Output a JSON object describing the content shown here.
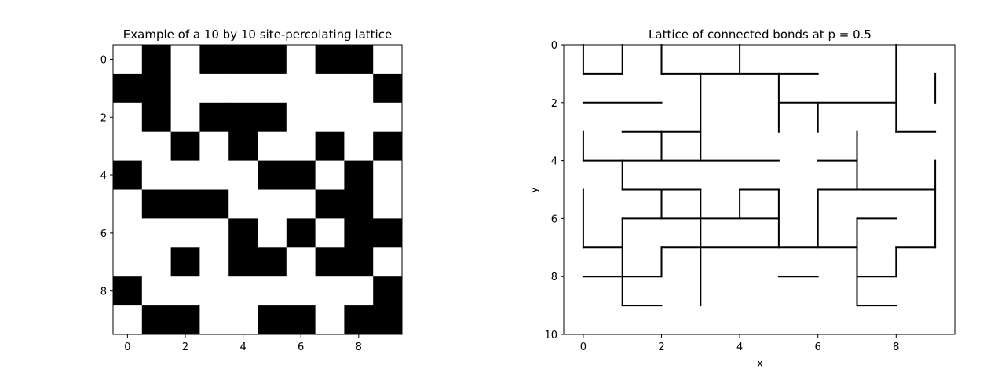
{
  "chart_data": [
    {
      "type": "heatmap",
      "title": "Example of a 10 by 10 site-percolating lattice",
      "colors": {
        "occupied": "#000000",
        "empty": "#ffffff"
      },
      "x_ticks": [
        "0",
        "2",
        "4",
        "6",
        "8"
      ],
      "y_ticks": [
        "0",
        "2",
        "4",
        "6",
        "8"
      ],
      "grid": [
        [
          0,
          1,
          0,
          1,
          1,
          1,
          0,
          1,
          1,
          0
        ],
        [
          1,
          1,
          0,
          0,
          0,
          0,
          0,
          0,
          0,
          1
        ],
        [
          0,
          1,
          0,
          1,
          1,
          1,
          0,
          0,
          0,
          0
        ],
        [
          0,
          0,
          1,
          0,
          1,
          0,
          0,
          1,
          0,
          1
        ],
        [
          1,
          0,
          0,
          0,
          0,
          1,
          1,
          0,
          1,
          0
        ],
        [
          0,
          1,
          1,
          1,
          0,
          0,
          0,
          1,
          1,
          0
        ],
        [
          0,
          0,
          0,
          0,
          1,
          0,
          1,
          0,
          1,
          1
        ],
        [
          0,
          0,
          1,
          0,
          1,
          1,
          0,
          1,
          1,
          0
        ],
        [
          1,
          0,
          0,
          0,
          0,
          0,
          0,
          0,
          0,
          1
        ],
        [
          0,
          1,
          1,
          0,
          0,
          1,
          1,
          0,
          1,
          1
        ]
      ]
    },
    {
      "type": "line",
      "title": "Lattice of connected bonds at p = 0.5",
      "xlabel": "x",
      "ylabel": "y",
      "xlim": [
        -0.5,
        9.5
      ],
      "ylim": [
        10,
        0
      ],
      "x_ticks": [
        "0",
        "2",
        "4",
        "6",
        "8"
      ],
      "y_ticks": [
        "0",
        "2",
        "4",
        "6",
        "8",
        "10"
      ],
      "line_color": "#000000",
      "segments": [
        [
          [
            0,
            0
          ],
          [
            0,
            1
          ]
        ],
        [
          [
            0,
            1
          ],
          [
            1,
            1
          ]
        ],
        [
          [
            1,
            1
          ],
          [
            1,
            0
          ]
        ],
        [
          [
            2,
            0
          ],
          [
            2,
            1
          ]
        ],
        [
          [
            2,
            1
          ],
          [
            6,
            1
          ]
        ],
        [
          [
            4,
            0
          ],
          [
            4,
            1
          ]
        ],
        [
          [
            8,
            0
          ],
          [
            8,
            3
          ]
        ],
        [
          [
            8,
            3
          ],
          [
            9,
            3
          ]
        ],
        [
          [
            9,
            1
          ],
          [
            9,
            2
          ]
        ],
        [
          [
            0,
            2
          ],
          [
            2,
            2
          ]
        ],
        [
          [
            3,
            1
          ],
          [
            3,
            4
          ]
        ],
        [
          [
            5,
            1
          ],
          [
            5,
            3
          ]
        ],
        [
          [
            5,
            2
          ],
          [
            8,
            2
          ]
        ],
        [
          [
            6,
            2
          ],
          [
            6,
            3
          ]
        ],
        [
          [
            1,
            3
          ],
          [
            3,
            3
          ]
        ],
        [
          [
            2,
            3
          ],
          [
            2,
            4
          ]
        ],
        [
          [
            0,
            3
          ],
          [
            0,
            4
          ]
        ],
        [
          [
            0,
            4
          ],
          [
            5,
            4
          ]
        ],
        [
          [
            6,
            4
          ],
          [
            7,
            4
          ]
        ],
        [
          [
            7,
            3
          ],
          [
            7,
            5
          ]
        ],
        [
          [
            1,
            4
          ],
          [
            1,
            5
          ]
        ],
        [
          [
            1,
            5
          ],
          [
            3,
            5
          ]
        ],
        [
          [
            2,
            5
          ],
          [
            2,
            6
          ]
        ],
        [
          [
            3,
            5
          ],
          [
            3,
            9
          ]
        ],
        [
          [
            4,
            5
          ],
          [
            5,
            5
          ]
        ],
        [
          [
            4,
            5
          ],
          [
            4,
            6
          ]
        ],
        [
          [
            5,
            5
          ],
          [
            5,
            7
          ]
        ],
        [
          [
            6,
            5
          ],
          [
            9,
            5
          ]
        ],
        [
          [
            6,
            5
          ],
          [
            6,
            7
          ]
        ],
        [
          [
            9,
            4
          ],
          [
            9,
            7
          ]
        ],
        [
          [
            1,
            6
          ],
          [
            5,
            6
          ]
        ],
        [
          [
            1,
            6
          ],
          [
            1,
            9
          ]
        ],
        [
          [
            0,
            5
          ],
          [
            0,
            7
          ]
        ],
        [
          [
            0,
            7
          ],
          [
            1,
            7
          ]
        ],
        [
          [
            2,
            7
          ],
          [
            7,
            7
          ]
        ],
        [
          [
            2,
            7
          ],
          [
            2,
            8
          ]
        ],
        [
          [
            7,
            6
          ],
          [
            8,
            6
          ]
        ],
        [
          [
            7,
            6
          ],
          [
            7,
            9
          ]
        ],
        [
          [
            8,
            7
          ],
          [
            9,
            7
          ]
        ],
        [
          [
            8,
            7
          ],
          [
            8,
            8
          ]
        ],
        [
          [
            7,
            8
          ],
          [
            8,
            8
          ]
        ],
        [
          [
            0,
            8
          ],
          [
            2,
            8
          ]
        ],
        [
          [
            1,
            9
          ],
          [
            2,
            9
          ]
        ],
        [
          [
            5,
            8
          ],
          [
            6,
            8
          ]
        ],
        [
          [
            7,
            9
          ],
          [
            8,
            9
          ]
        ]
      ]
    }
  ]
}
